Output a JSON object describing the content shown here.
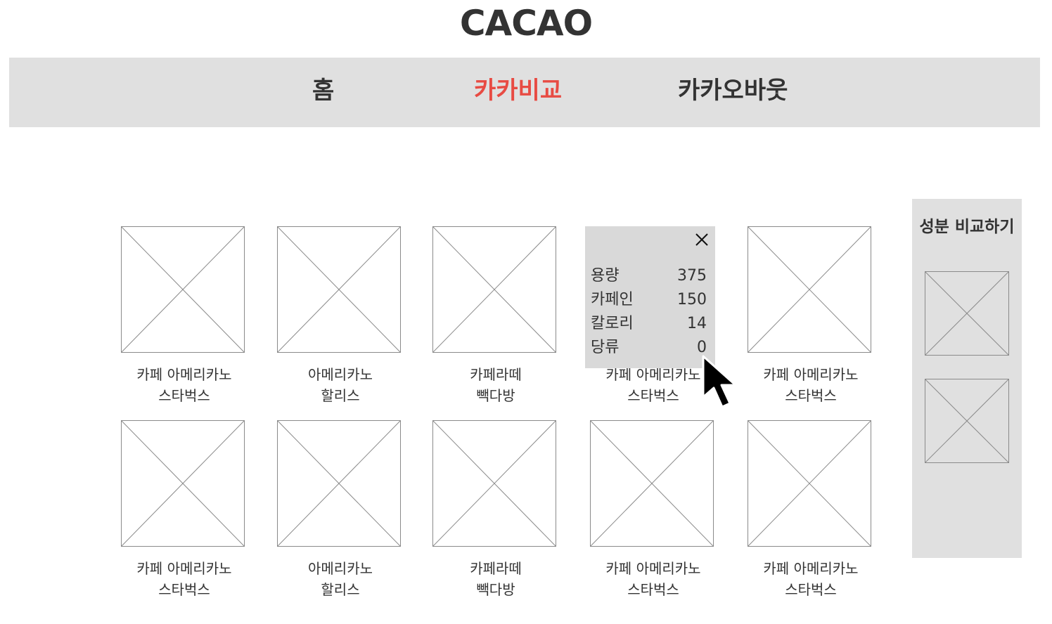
{
  "header": {
    "title": "CACAO"
  },
  "nav": {
    "items": [
      {
        "label": "홈"
      },
      {
        "label": "카카비교"
      },
      {
        "label": "카카오바웃"
      }
    ],
    "active_index": 1,
    "active_color": "#e84b43"
  },
  "products": [
    {
      "name": "카페 아메리카노",
      "brand": "스타벅스"
    },
    {
      "name": "아메리카노",
      "brand": "할리스"
    },
    {
      "name": "카페라떼",
      "brand": "빽다방"
    },
    {
      "name": "카페 아메리카노",
      "brand": "스타벅스"
    },
    {
      "name": "카페 아메리카노",
      "brand": "스타벅스"
    },
    {
      "name": "카페 아메리카노",
      "brand": "스타벅스"
    },
    {
      "name": "아메리카노",
      "brand": "할리스"
    },
    {
      "name": "카페라떼",
      "brand": "빽다방"
    },
    {
      "name": "카페 아메리카노",
      "brand": "스타벅스"
    },
    {
      "name": "카페 아메리카노",
      "brand": "스타벅스"
    }
  ],
  "nutrition_popup": {
    "rows": [
      {
        "label": "용량",
        "value": "375"
      },
      {
        "label": "카페인",
        "value": "150"
      },
      {
        "label": "칼로리",
        "value": "14"
      },
      {
        "label": "당류",
        "value": "0"
      }
    ],
    "close_icon": "close-icon"
  },
  "compare_panel": {
    "title": "성분 비교하기"
  },
  "icons": {
    "image_placeholder": "image-placeholder-icon",
    "cursor": "mouse-pointer-icon"
  }
}
